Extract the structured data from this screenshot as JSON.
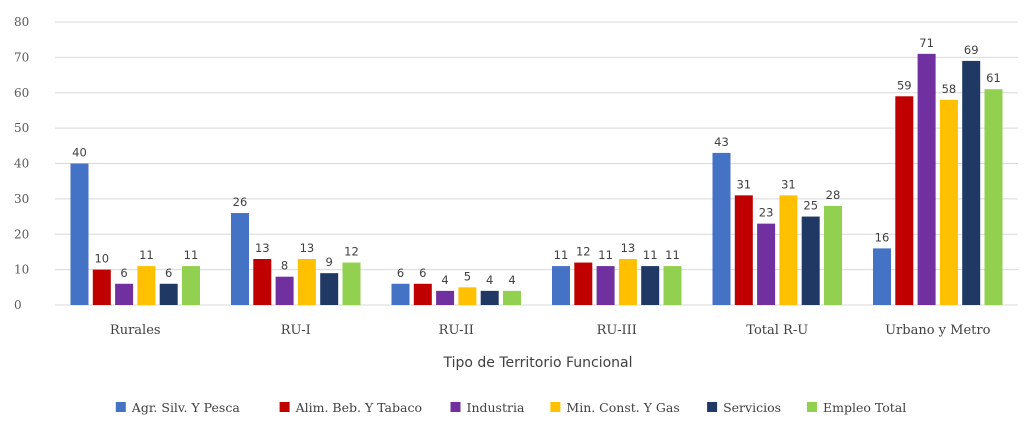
{
  "chart_data": {
    "type": "bar",
    "title": "",
    "xlabel": "Tipo de Territorio Funcional",
    "ylabel": "",
    "ylim": [
      0,
      80
    ],
    "yticks": [
      0,
      10,
      20,
      30,
      40,
      50,
      60,
      70,
      80
    ],
    "grid": true,
    "legend_position": "bottom",
    "categories": [
      "Rurales",
      "RU-I",
      "RU-II",
      "RU-III",
      "Total R-U",
      "Urbano y Metro"
    ],
    "series": [
      {
        "name": "Agr. Silv. Y Pesca",
        "color": "#4472c4",
        "values": [
          40,
          26,
          6,
          11,
          43,
          16
        ]
      },
      {
        "name": "Alim. Beb. Y Tabaco",
        "color": "#c00000",
        "values": [
          10,
          13,
          6,
          12,
          31,
          59
        ]
      },
      {
        "name": "Industria",
        "color": "#7030a0",
        "values": [
          6,
          8,
          4,
          11,
          23,
          71
        ]
      },
      {
        "name": "Min. Const. Y Gas",
        "color": "#ffc000",
        "values": [
          11,
          13,
          5,
          13,
          31,
          58
        ]
      },
      {
        "name": "Servicios",
        "color": "#1f3864",
        "values": [
          6,
          9,
          4,
          11,
          25,
          69
        ]
      },
      {
        "name": "Empleo Total",
        "color": "#92d050",
        "values": [
          11,
          12,
          4,
          11,
          28,
          61
        ]
      }
    ]
  }
}
